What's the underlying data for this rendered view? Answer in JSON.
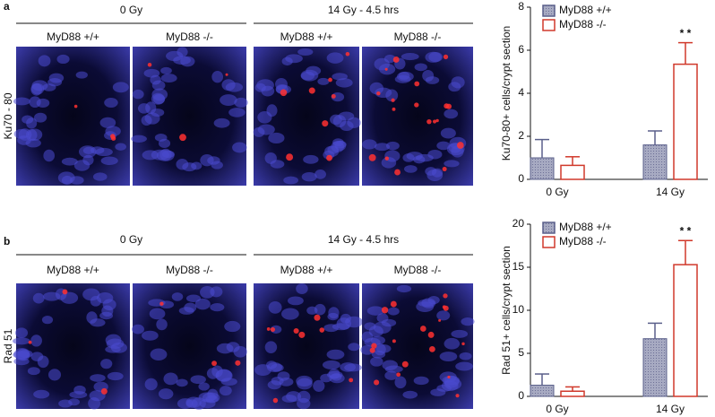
{
  "panels": [
    {
      "label": "a",
      "stain": "Ku70 - 80",
      "groups": [
        "0 Gy",
        "14 Gy - 4.5 hrs"
      ],
      "columns": [
        "MyD88 +/+",
        "MyD88 -/-",
        "MyD88 +/+",
        "MyD88 -/-"
      ]
    },
    {
      "label": "b",
      "stain": "Rad 51",
      "groups": [
        "0 Gy",
        "14 Gy - 4.5 hrs"
      ],
      "columns": [
        "MyD88 +/+",
        "MyD88 -/-",
        "MyD88 +/+",
        "MyD88 -/-"
      ]
    }
  ],
  "chart_data": [
    {
      "type": "bar",
      "y_label": "Ku70-80+ cells/crypt section",
      "categories": [
        "0 Gy",
        "14 Gy"
      ],
      "series": [
        {
          "name": "MyD88 +/+",
          "color": "#5a5f8a",
          "values": [
            1.0,
            1.6
          ],
          "errors": [
            0.85,
            0.65
          ]
        },
        {
          "name": "MyD88 -/-",
          "color": "#d0392b",
          "values": [
            0.65,
            5.35
          ],
          "errors": [
            0.4,
            1.0
          ]
        }
      ],
      "annotation": "* *",
      "ylim": [
        0,
        8
      ],
      "yticks": [
        0,
        2,
        4,
        6,
        8
      ],
      "legend": "upper left"
    },
    {
      "type": "bar",
      "y_label": "Rad 51+ cells/crypt section",
      "categories": [
        "0 Gy",
        "14 Gy"
      ],
      "series": [
        {
          "name": "MyD88 +/+",
          "color": "#5a5f8a",
          "values": [
            1.3,
            6.7
          ],
          "errors": [
            1.3,
            1.8
          ]
        },
        {
          "name": "MyD88 -/-",
          "color": "#d0392b",
          "values": [
            0.6,
            15.3
          ],
          "errors": [
            0.5,
            2.8
          ]
        }
      ],
      "annotation": "* *",
      "ylim": [
        0,
        20
      ],
      "yticks": [
        0,
        5,
        10,
        15,
        20
      ],
      "legend": "upper left"
    }
  ]
}
